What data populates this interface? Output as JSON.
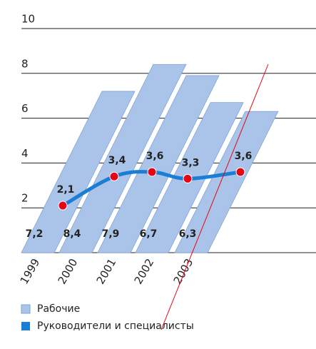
{
  "chart_data": {
    "type": "bar",
    "categories": [
      "1999",
      "2000",
      "2001",
      "2002",
      "2003"
    ],
    "series": [
      {
        "name": "Рабочие",
        "color": "#a9c4e8",
        "values": [
          7.2,
          8.4,
          7.9,
          6.7,
          6.3
        ],
        "value_labels": [
          "7,2",
          "8,4",
          "7,9",
          "6,7",
          "6,3"
        ]
      },
      {
        "name": "Руководители и специалисты",
        "type": "line",
        "color": "#1a7fd4",
        "marker_color": "#e30613",
        "values": [
          2.1,
          3.4,
          3.6,
          3.3,
          3.6
        ],
        "value_labels": [
          "2,1",
          "3,4",
          "3,6",
          "3,3",
          "3,6"
        ]
      }
    ],
    "ylim": [
      0,
      10
    ],
    "yticks": [
      2,
      4,
      6,
      8,
      10
    ],
    "grid": true,
    "legend": "bottom"
  }
}
